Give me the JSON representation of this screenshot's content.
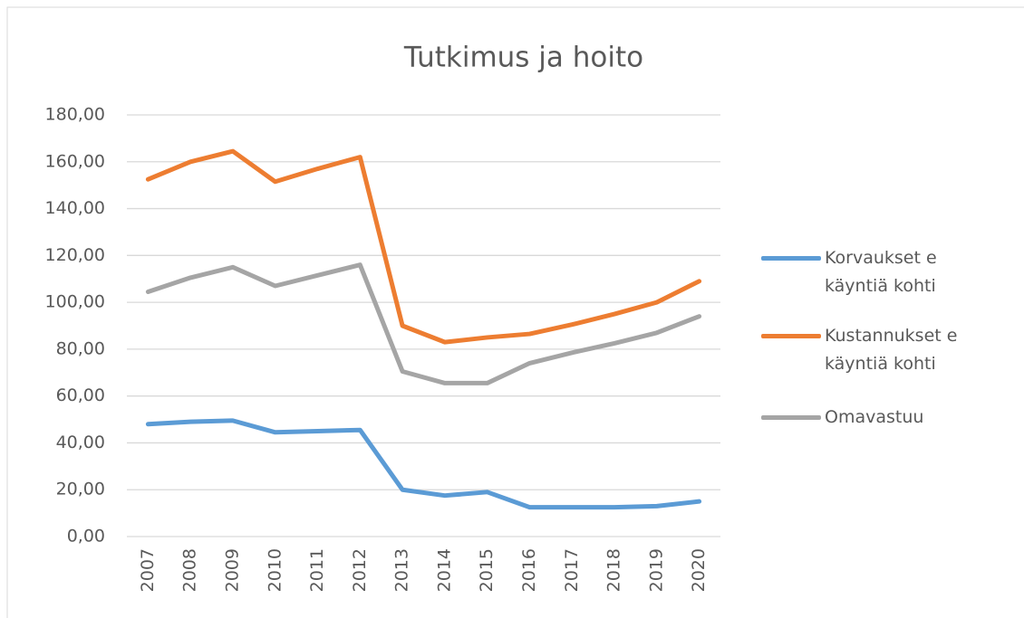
{
  "chart_data": {
    "type": "line",
    "title": "Tutkimus ja hoito",
    "categories": [
      "2007",
      "2008",
      "2009",
      "2010",
      "2011",
      "2012",
      "2013",
      "2014",
      "2015",
      "2016",
      "2017",
      "2018",
      "2019",
      "2020"
    ],
    "series": [
      {
        "name": "Korvaukset e käyntiä kohti",
        "color": "#5b9bd5",
        "values": [
          48,
          49,
          49.5,
          44.5,
          45,
          45.5,
          20,
          17.5,
          19,
          12.5,
          12.5,
          12.5,
          13,
          15
        ]
      },
      {
        "name": "Kustannukset e käyntiä kohti",
        "color": "#ed7d31",
        "values": [
          152.5,
          160,
          164.5,
          151.5,
          157,
          162,
          90,
          83,
          85,
          86.5,
          90.5,
          95,
          100,
          109
        ]
      },
      {
        "name": "Omavastuu",
        "color": "#a5a5a5",
        "values": [
          104.5,
          110.5,
          115,
          107,
          111.5,
          116,
          70.5,
          65.5,
          65.5,
          74,
          78.5,
          82.5,
          87,
          94
        ]
      }
    ],
    "ylim": [
      0,
      180
    ],
    "yticks": [
      {
        "value": 0,
        "label": "0,00"
      },
      {
        "value": 20,
        "label": "20,00"
      },
      {
        "value": 40,
        "label": "40,00"
      },
      {
        "value": 60,
        "label": "60,00"
      },
      {
        "value": 80,
        "label": "80,00"
      },
      {
        "value": 100,
        "label": "100,00"
      },
      {
        "value": 120,
        "label": "120,00"
      },
      {
        "value": 140,
        "label": "140,00"
      },
      {
        "value": 160,
        "label": "160,00"
      },
      {
        "value": 180,
        "label": "180,00"
      }
    ],
    "grid": true,
    "legend": "right"
  }
}
